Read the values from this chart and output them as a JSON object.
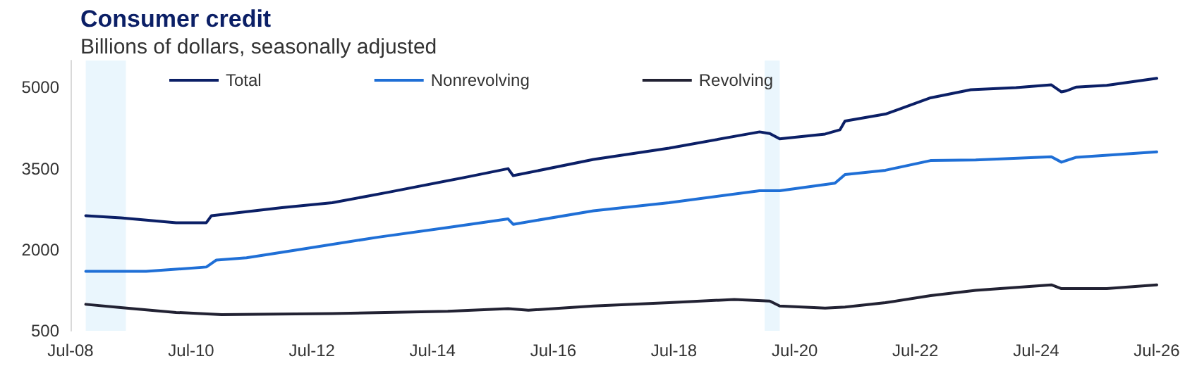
{
  "chart_data": {
    "type": "line",
    "title": "Consumer credit",
    "subtitle": "Billions of dollars, seasonally adjusted",
    "xlim": [
      "2008-07",
      "2026-07"
    ],
    "xticks": [
      {
        "value": "2008-07",
        "label": "Jul-08"
      },
      {
        "value": "2010-07",
        "label": "Jul-10"
      },
      {
        "value": "2012-07",
        "label": "Jul-12"
      },
      {
        "value": "2014-07",
        "label": "Jul-14"
      },
      {
        "value": "2016-07",
        "label": "Jul-16"
      },
      {
        "value": "2018-07",
        "label": "Jul-18"
      },
      {
        "value": "2020-07",
        "label": "Jul-20"
      },
      {
        "value": "2022-07",
        "label": "Jul-22"
      },
      {
        "value": "2024-07",
        "label": "Jul-24"
      },
      {
        "value": "2026-07",
        "label": "Jul-26"
      }
    ],
    "ylim": [
      500,
      5500
    ],
    "yticks": [
      500,
      2000,
      3500,
      5000
    ],
    "grid": false,
    "legend": "top",
    "marker": "none",
    "line_style": "solid",
    "bands": [
      {
        "axis": "x",
        "from": "2008-10",
        "to": "2009-06",
        "color": "#eaf6fd"
      },
      {
        "axis": "x",
        "from": "2020-01",
        "to": "2020-04",
        "color": "#eaf6fd"
      }
    ],
    "series": [
      {
        "name": "Total",
        "color": "#0b1f66",
        "x": [
          "2008-10",
          "2009-05",
          "2010-04",
          "2010-10",
          "2010-11",
          "2012-01",
          "2012-11",
          "2013-10",
          "2015-02",
          "2015-10",
          "2015-11",
          "2017-03",
          "2018-06",
          "2019-12",
          "2020-02",
          "2020-04",
          "2021-01",
          "2021-04",
          "2021-05",
          "2022-01",
          "2022-10",
          "2023-06",
          "2024-03",
          "2024-10",
          "2024-12",
          "2025-01",
          "2025-03",
          "2025-09",
          "2026-07"
        ],
        "values": [
          2630,
          2590,
          2500,
          2500,
          2630,
          2780,
          2870,
          3060,
          3350,
          3500,
          3370,
          3670,
          3880,
          4180,
          4150,
          4050,
          4140,
          4220,
          4380,
          4510,
          4810,
          4960,
          5000,
          5050,
          4920,
          4940,
          5010,
          5040,
          5170
        ]
      },
      {
        "name": "Nonrevolving",
        "color": "#1f6fd6",
        "x": [
          "2008-10",
          "2009-05",
          "2009-10",
          "2010-10",
          "2010-12",
          "2011-06",
          "2012-05",
          "2013-08",
          "2014-10",
          "2015-10",
          "2015-11",
          "2017-03",
          "2018-06",
          "2019-12",
          "2020-04",
          "2021-03",
          "2021-05",
          "2022-01",
          "2022-10",
          "2023-07",
          "2024-10",
          "2024-12",
          "2025-03",
          "2026-07"
        ],
        "values": [
          1600,
          1600,
          1600,
          1680,
          1810,
          1850,
          2010,
          2230,
          2410,
          2570,
          2470,
          2720,
          2870,
          3090,
          3090,
          3230,
          3390,
          3470,
          3650,
          3660,
          3720,
          3620,
          3710,
          3810
        ]
      },
      {
        "name": "Revolving",
        "color": "#222233",
        "x": [
          "2008-10",
          "2009-05",
          "2010-04",
          "2011-01",
          "2012-11",
          "2014-10",
          "2015-10",
          "2016-02",
          "2017-03",
          "2018-06",
          "2019-07",
          "2020-02",
          "2020-04",
          "2021-01",
          "2021-05",
          "2022-01",
          "2022-10",
          "2023-07",
          "2024-10",
          "2024-12",
          "2025-09",
          "2026-07"
        ],
        "values": [
          990,
          930,
          840,
          800,
          820,
          860,
          910,
          880,
          960,
          1020,
          1080,
          1050,
          960,
          920,
          940,
          1020,
          1150,
          1250,
          1350,
          1280,
          1280,
          1350
        ]
      }
    ]
  }
}
